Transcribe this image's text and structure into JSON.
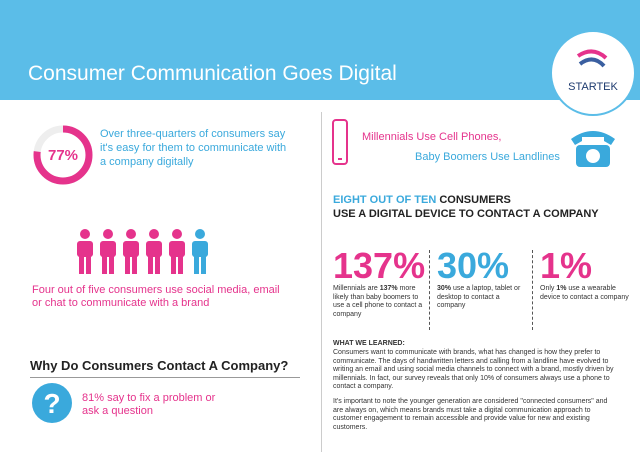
{
  "header": {
    "title": "Consumer Communication Goes Digital",
    "logo": "STARTEK"
  },
  "ease": {
    "value": 77,
    "label": "77%",
    "text": "Over three-quarters of consumers say it's easy for them to communicate with a company digitally"
  },
  "social": {
    "text": "Four out of five consumers use social media, email or chat to communicate with a brand"
  },
  "why": {
    "heading": "Why Do Consumers Contact A Company?",
    "text": "81% say to fix a problem or ask a question"
  },
  "devices": {
    "line1": "Millennials Use Cell Phones,",
    "line2": "Baby Boomers Use Landlines"
  },
  "headline": {
    "highlight": "EIGHT OUT OF TEN",
    "rest1": "CONSUMERS",
    "rest2": "USE A DIGITAL DEVICE TO CONTACT A COMPANY"
  },
  "stats": [
    {
      "big": "137%",
      "color": "#e5338c",
      "desc": [
        {
          "text": "Millennials are ",
          "bold": false
        },
        {
          "text": "137%",
          "bold": true
        },
        {
          "text": " more likely than baby boomers to use a cell phone to contact a company",
          "bold": false
        }
      ]
    },
    {
      "big": "30%",
      "color": "#3aa9dc",
      "desc": [
        {
          "text": "30%",
          "bold": true
        },
        {
          "text": " use a laptop, tablet or desktop to contact a company",
          "bold": false
        }
      ]
    },
    {
      "big": "1%",
      "color": "#e5338c",
      "desc": [
        {
          "text": "Only ",
          "bold": false
        },
        {
          "text": "1%",
          "bold": true
        },
        {
          "text": " use a wearable device to contact a company",
          "bold": false
        }
      ]
    }
  ],
  "learned": {
    "heading": "WHAT WE LEARNED:",
    "p1": "Consumers want to communicate with brands, what has changed is how they prefer to communicate. The days of handwritten letters and calling from a landline have evolved to writing an email and using social media channels to connect with a brand, mostly driven by millennials. In fact, our survey reveals that only 10% of consumers always use a phone to contact a company.",
    "p2": "It's important to note the younger generation are considered \"connected consumers\" and are always on, which means brands must take a digital communication approach to customer engagement to remain accessible and provide value for new and existing customers."
  }
}
